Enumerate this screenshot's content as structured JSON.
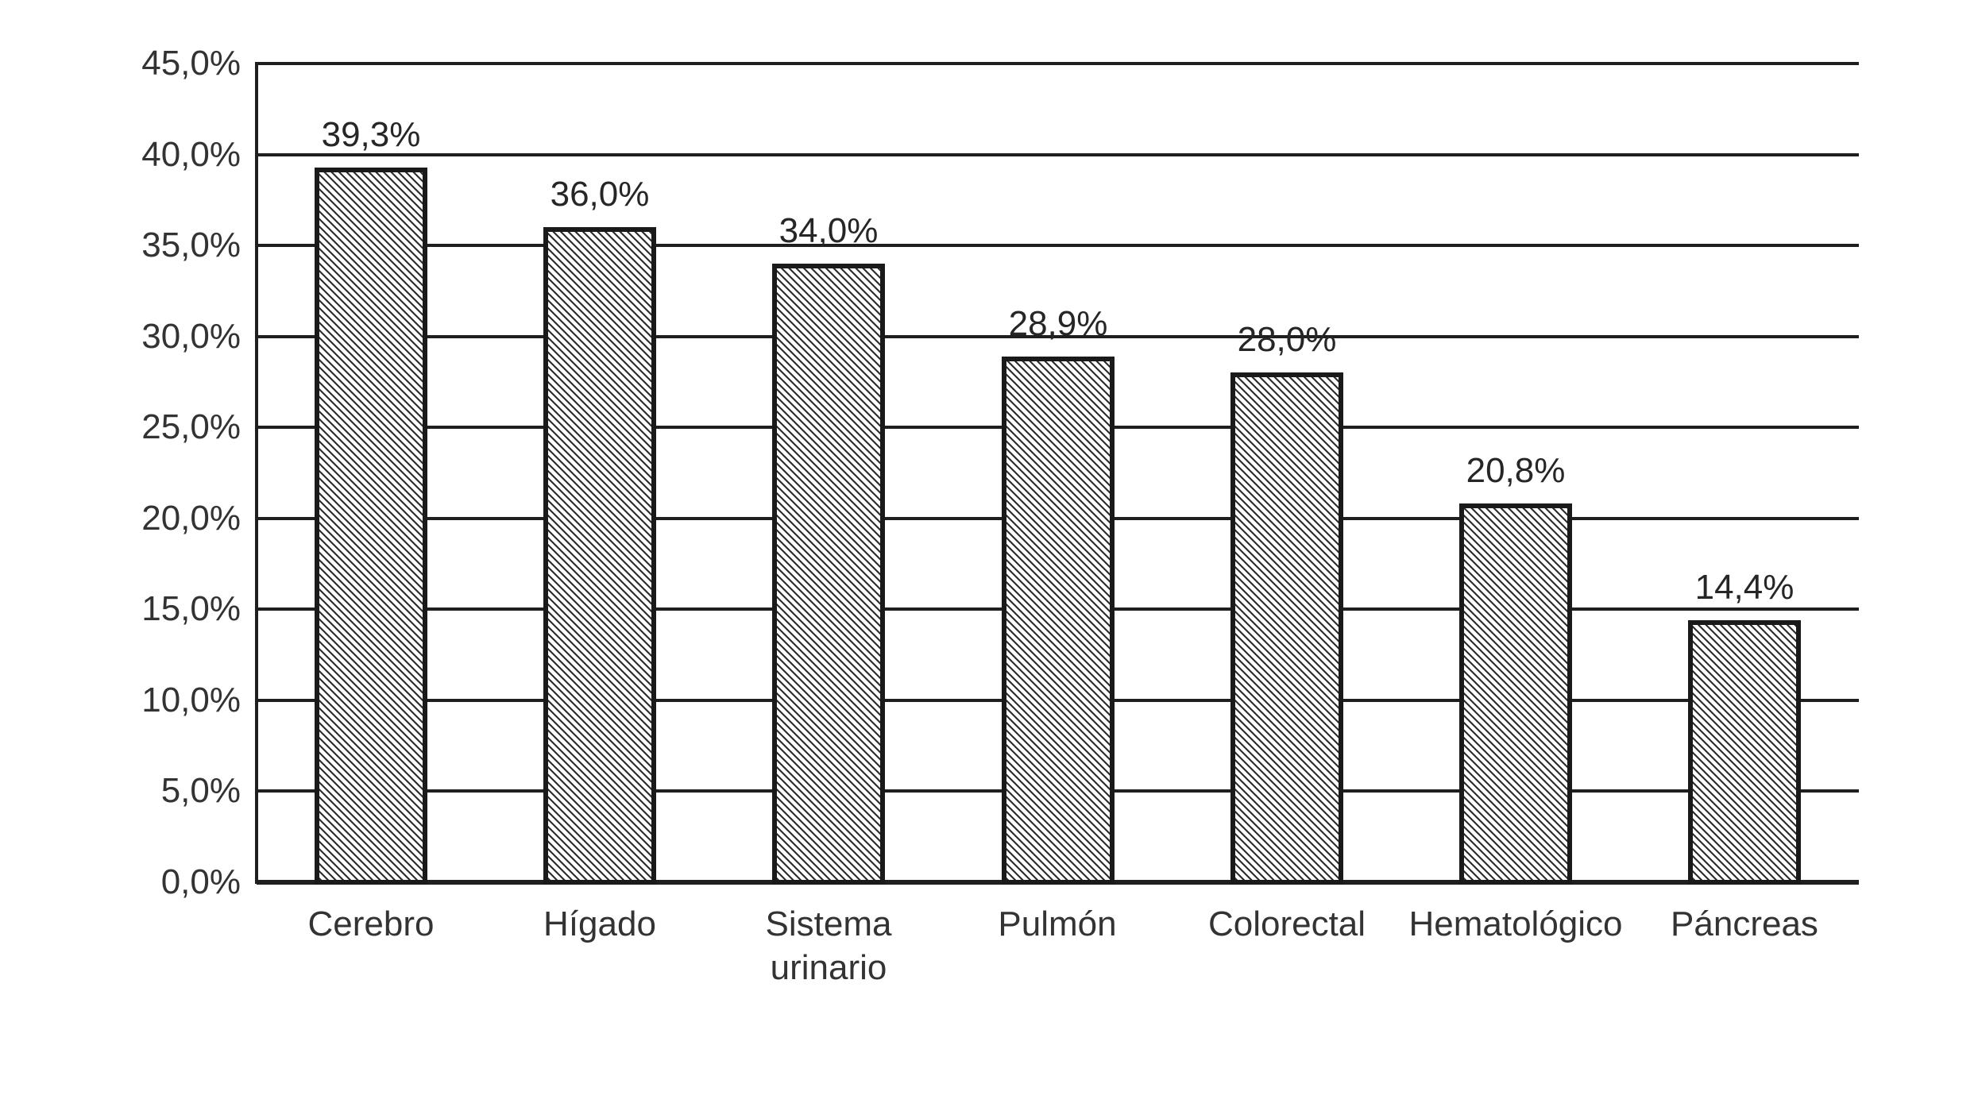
{
  "figure": {
    "background": "#ffffff"
  },
  "chart_data": {
    "type": "bar",
    "title": "",
    "xlabel": "",
    "ylabel": "",
    "categories": [
      "Cerebro",
      "Hígado",
      "Sistema urinario",
      "Pulmón",
      "Colorectal",
      "Hematológico",
      "Páncreas"
    ],
    "values": [
      39.3,
      36.0,
      34.0,
      28.9,
      28.0,
      20.8,
      14.4
    ],
    "value_labels": [
      "39,3%",
      "36,0%",
      "34,0%",
      "28,9%",
      "28,0%",
      "20,8%",
      "14,4%"
    ],
    "ylim": [
      0,
      45
    ],
    "y_tick_step": 5,
    "y_tick_labels": [
      "0,0%",
      "5,0%",
      "10,0%",
      "15,0%",
      "20,0%",
      "25,0%",
      "30,0%",
      "35,0%",
      "40,0%",
      "45,0%"
    ],
    "grid": "horizontal",
    "legend": "none",
    "bar_fill": "diagonal-hatch",
    "colors": {
      "gridline": "#1f1f1f",
      "axis": "#1f1f1f",
      "bar_border": "#1a1a1a",
      "hatch_line": "#2e2e2e",
      "hatch_bg": "#ffffff",
      "tick_text": "#333333",
      "value_text": "#262626"
    }
  }
}
